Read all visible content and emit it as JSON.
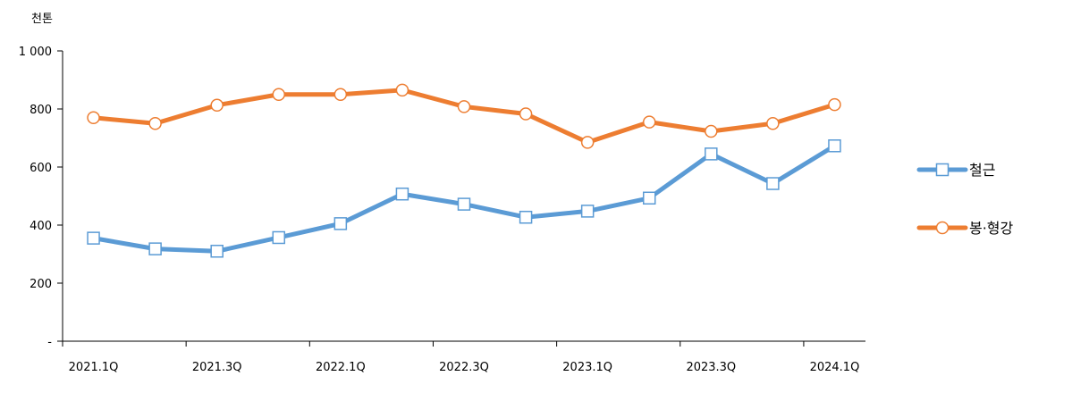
{
  "chart_data": {
    "type": "line",
    "unit_label": "천톤",
    "title": "",
    "xlabel": "",
    "ylabel": "",
    "x": [
      "2021.1Q",
      "2021.2Q",
      "2021.3Q",
      "2021.4Q",
      "2022.1Q",
      "2022.2Q",
      "2022.3Q",
      "2022.4Q",
      "2023.1Q",
      "2023.2Q",
      "2023.3Q",
      "2023.4Q",
      "2024.1Q"
    ],
    "x_tick_labels": [
      "2021.1Q",
      "2021.3Q",
      "2022.1Q",
      "2022.3Q",
      "2023.1Q",
      "2023.3Q",
      "2024.1Q"
    ],
    "y_tick_labels": [
      "-",
      "200",
      "400",
      "600",
      "800",
      "1 000"
    ],
    "y_ticks": [
      0,
      200,
      400,
      600,
      800,
      1000
    ],
    "ylim": [
      0,
      1000
    ],
    "grid": false,
    "legend_position": "right",
    "series": [
      {
        "name": "철근",
        "color": "#5b9bd5",
        "marker": "square",
        "values": [
          355,
          318,
          310,
          357,
          405,
          507,
          472,
          427,
          448,
          493,
          645,
          543,
          673
        ]
      },
      {
        "name": "봉·형강",
        "color": "#ed7d31",
        "marker": "circle",
        "values": [
          770,
          750,
          813,
          850,
          850,
          865,
          808,
          783,
          685,
          755,
          723,
          750,
          815
        ]
      }
    ]
  }
}
